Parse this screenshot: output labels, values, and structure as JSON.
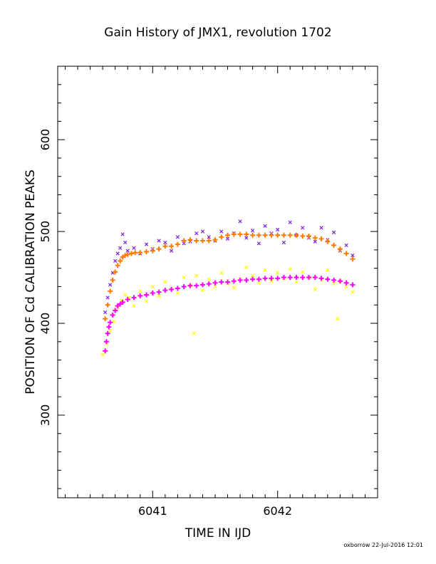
{
  "chart_data": {
    "type": "scatter",
    "title": "Gain History of JMX1, revolution 1702",
    "xlabel": "TIME IN IJD",
    "ylabel": "POSITION OF Cd CALIBRATION PEAKS",
    "footer": "oxborrow 22-Jul-2016 12:01",
    "xlim": [
      6040.24,
      6042.8
    ],
    "ylim": [
      210,
      680
    ],
    "xticks": [
      6041,
      6042
    ],
    "xtick_labels": [
      "6041",
      "6042"
    ],
    "yticks": [
      300,
      400,
      500,
      600
    ],
    "ytick_labels": [
      "300",
      "400",
      "500",
      "600"
    ],
    "grid": false,
    "legend": "none",
    "series": [
      {
        "marker": "x",
        "color": "#7b1fe0",
        "x": [
          6040.62,
          6040.64,
          6040.66,
          6040.68,
          6040.7,
          6040.72,
          6040.74,
          6040.76,
          6040.78,
          6040.8,
          6040.85,
          6040.9,
          6040.95,
          6041.0,
          6041.05,
          6041.1,
          6041.15,
          6041.2,
          6041.25,
          6041.3,
          6041.35,
          6041.4,
          6041.45,
          6041.5,
          6041.55,
          6041.6,
          6041.65,
          6041.7,
          6041.75,
          6041.8,
          6041.85,
          6041.9,
          6041.95,
          6042.0,
          6042.05,
          6042.1,
          6042.15,
          6042.2,
          6042.25,
          6042.3,
          6042.35,
          6042.4,
          6042.45,
          6042.5,
          6042.55,
          6042.6
        ],
        "y": [
          412,
          428,
          442,
          455,
          468,
          476,
          482,
          497,
          488,
          479,
          482,
          476,
          486,
          481,
          490,
          488,
          479,
          494,
          487,
          489,
          498,
          500,
          494,
          490,
          500,
          492,
          498,
          511,
          493,
          501,
          487,
          506,
          498,
          502,
          488,
          510,
          496,
          504,
          493,
          489,
          504,
          491,
          499,
          479,
          485,
          474
        ]
      },
      {
        "marker": "+",
        "color": "#ff7a00",
        "x": [
          6040.62,
          6040.64,
          6040.66,
          6040.68,
          6040.7,
          6040.72,
          6040.74,
          6040.76,
          6040.78,
          6040.8,
          6040.83,
          6040.86,
          6040.9,
          6040.95,
          6041.0,
          6041.05,
          6041.1,
          6041.15,
          6041.2,
          6041.25,
          6041.3,
          6041.35,
          6041.4,
          6041.45,
          6041.5,
          6041.55,
          6041.6,
          6041.65,
          6041.7,
          6041.75,
          6041.8,
          6041.85,
          6041.9,
          6041.95,
          6042.0,
          6042.05,
          6042.1,
          6042.15,
          6042.2,
          6042.25,
          6042.3,
          6042.35,
          6042.4,
          6042.45,
          6042.5,
          6042.55,
          6042.6
        ],
        "y": [
          405,
          420,
          435,
          447,
          456,
          463,
          468,
          472,
          474,
          475,
          476,
          477,
          477,
          478,
          479,
          481,
          484,
          484,
          486,
          490,
          491,
          490,
          490,
          490,
          491,
          494,
          496,
          497,
          497,
          497,
          496,
          496,
          496,
          496,
          496,
          496,
          496,
          496,
          495,
          495,
          493,
          492,
          489,
          485,
          481,
          476,
          470
        ]
      },
      {
        "marker": "x",
        "color": "#ffff00",
        "x": [
          6040.6,
          6040.63,
          6040.66,
          6040.69,
          6040.72,
          6040.75,
          6040.78,
          6040.81,
          6040.85,
          6040.9,
          6040.95,
          6041.0,
          6041.05,
          6041.1,
          6041.15,
          6041.2,
          6041.25,
          6041.3,
          6041.33,
          6041.35,
          6041.4,
          6041.45,
          6041.5,
          6041.55,
          6041.6,
          6041.65,
          6041.7,
          6041.75,
          6041.8,
          6041.85,
          6041.9,
          6041.95,
          6042.0,
          6042.05,
          6042.1,
          6042.15,
          6042.2,
          6042.25,
          6042.3,
          6042.35,
          6042.4,
          6042.45,
          6042.48,
          6042.5,
          6042.55,
          6042.6
        ],
        "y": [
          366,
          378,
          392,
          402,
          417,
          425,
          431,
          428,
          419,
          435,
          424,
          440,
          430,
          445,
          438,
          433,
          450,
          441,
          389,
          452,
          436,
          448,
          440,
          455,
          443,
          439,
          448,
          461,
          452,
          444,
          458,
          446,
          455,
          449,
          459,
          445,
          456,
          450,
          437,
          447,
          458,
          443,
          405,
          446,
          440,
          434
        ]
      },
      {
        "marker": "+",
        "color": "#ff00ff",
        "x": [
          6040.62,
          6040.63,
          6040.64,
          6040.65,
          6040.66,
          6040.68,
          6040.7,
          6040.72,
          6040.74,
          6040.76,
          6040.8,
          6040.85,
          6040.9,
          6040.95,
          6041.0,
          6041.05,
          6041.1,
          6041.15,
          6041.2,
          6041.25,
          6041.3,
          6041.35,
          6041.4,
          6041.45,
          6041.5,
          6041.55,
          6041.6,
          6041.65,
          6041.7,
          6041.75,
          6041.8,
          6041.85,
          6041.9,
          6041.95,
          6042.0,
          6042.05,
          6042.1,
          6042.15,
          6042.2,
          6042.25,
          6042.3,
          6042.35,
          6042.4,
          6042.45,
          6042.5,
          6042.55,
          6042.6
        ],
        "y": [
          370,
          380,
          389,
          396,
          401,
          409,
          414,
          419,
          421,
          423,
          426,
          428,
          430,
          431,
          433,
          434,
          436,
          437,
          438,
          440,
          441,
          441,
          442,
          443,
          444,
          445,
          445,
          446,
          447,
          447,
          448,
          448,
          449,
          449,
          449,
          450,
          450,
          450,
          450,
          450,
          450,
          449,
          448,
          447,
          446,
          444,
          442
        ]
      }
    ]
  }
}
